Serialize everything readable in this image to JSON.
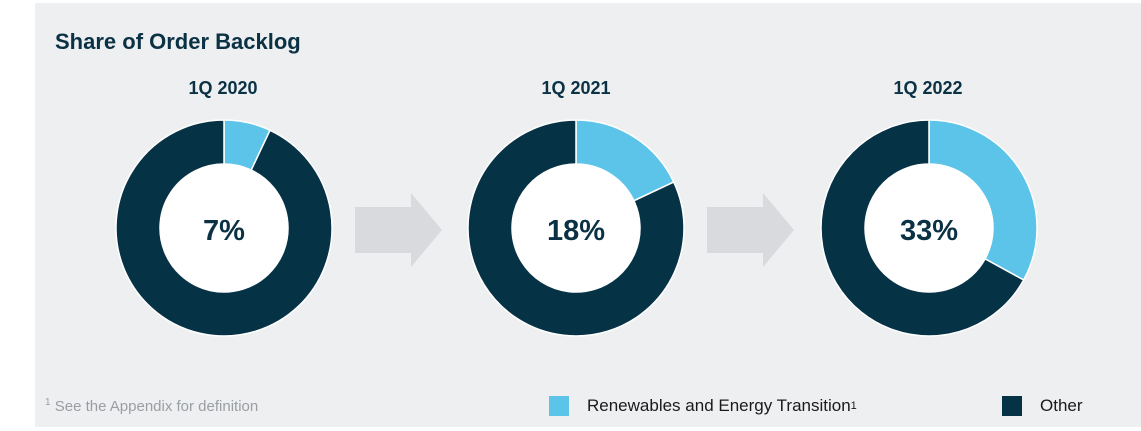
{
  "title": "Share of Order Backlog",
  "footnote": {
    "marker": "1",
    "text": "See the Appendix for definition"
  },
  "legend": {
    "renewables_label": "Renewables and Energy Transition",
    "renewables_marker": "1",
    "other_label": "Other"
  },
  "colors": {
    "renewables": "#5bc4e8",
    "other": "#063246",
    "arrow": "#d8dadd",
    "panel": "#eeeff1"
  },
  "chart_data": [
    {
      "type": "pie",
      "title": "1Q 2020",
      "categories": [
        "Renewables and Energy Transition",
        "Other"
      ],
      "values": [
        7,
        93
      ],
      "center_label": "7%"
    },
    {
      "type": "pie",
      "title": "1Q 2021",
      "categories": [
        "Renewables and Energy Transition",
        "Other"
      ],
      "values": [
        18,
        82
      ],
      "center_label": "18%"
    },
    {
      "type": "pie",
      "title": "1Q 2022",
      "categories": [
        "Renewables and Energy Transition",
        "Other"
      ],
      "values": [
        33,
        67
      ],
      "center_label": "33%"
    }
  ]
}
